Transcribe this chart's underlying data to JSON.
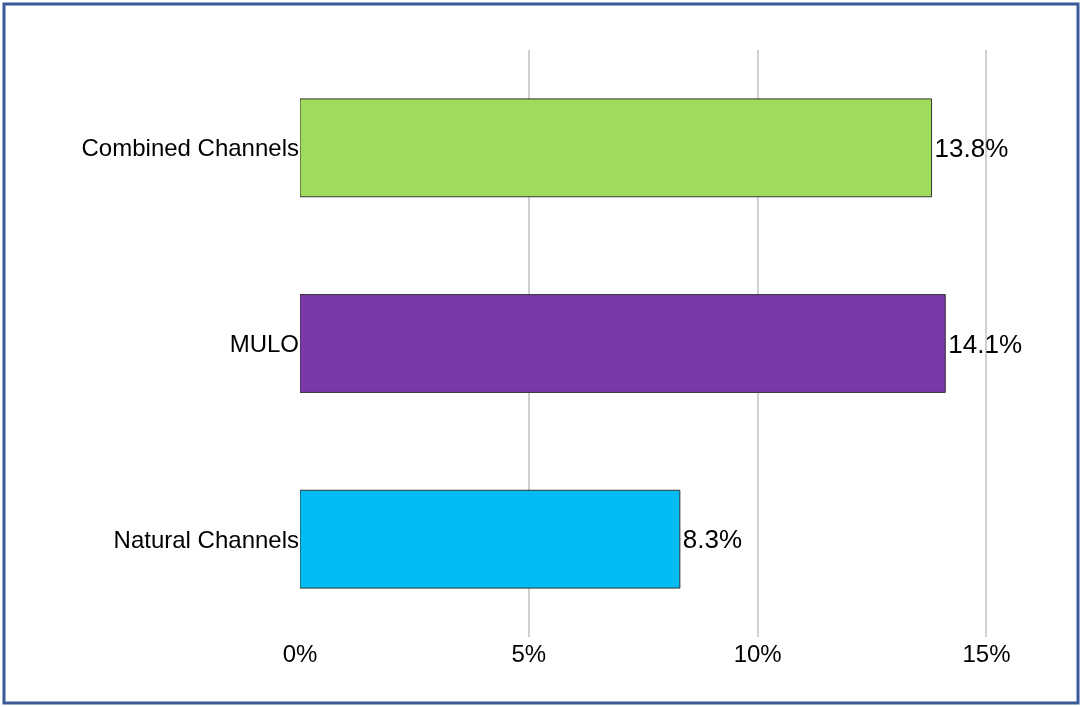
{
  "chart_data": {
    "type": "bar",
    "orientation": "horizontal",
    "categories": [
      "Combined Channels",
      "MULO",
      "Natural Channels"
    ],
    "values": [
      13.8,
      14.1,
      8.3
    ],
    "colors": [
      "#9fdc5c",
      "#7a38a8",
      "#00bcf2"
    ],
    "value_labels": [
      "13.8%",
      "14.1%",
      "8.3%"
    ],
    "xlim": [
      0,
      17
    ],
    "xticks": [
      {
        "value": 0,
        "label": "0%"
      },
      {
        "value": 5,
        "label": "5%"
      },
      {
        "value": 10,
        "label": "10%"
      },
      {
        "value": 15,
        "label": "15%"
      }
    ],
    "grid": "x"
  }
}
